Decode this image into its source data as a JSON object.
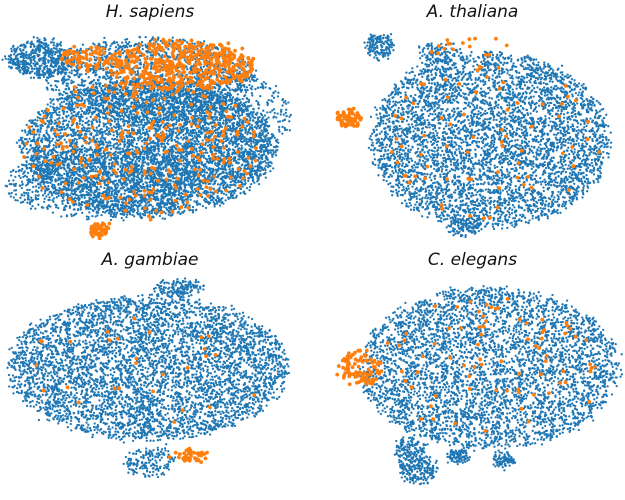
{
  "colors": {
    "background_points": "#1f77b4",
    "highlight_points": "#ff7f0e"
  },
  "chart_data": [
    {
      "type": "scatter",
      "title": "H. sapiens",
      "xlabel": "",
      "ylabel": "",
      "grid": false,
      "series": [
        {
          "color": "#1f77b4",
          "point_count": 9000
        },
        {
          "color": "#ff7f0e",
          "point_count": 900
        }
      ]
    },
    {
      "type": "scatter",
      "title": "A. thaliana",
      "xlabel": "",
      "ylabel": "",
      "grid": false,
      "series": [
        {
          "color": "#1f77b4",
          "point_count": 5200
        },
        {
          "color": "#ff7f0e",
          "point_count": 160
        }
      ]
    },
    {
      "type": "scatter",
      "title": "A. gambiae",
      "xlabel": "",
      "ylabel": "",
      "grid": false,
      "series": [
        {
          "color": "#1f77b4",
          "point_count": 5200
        },
        {
          "color": "#ff7f0e",
          "point_count": 70
        }
      ]
    },
    {
      "type": "scatter",
      "title": "C. elegans",
      "xlabel": "",
      "ylabel": "",
      "grid": false,
      "series": [
        {
          "color": "#1f77b4",
          "point_count": 4800
        },
        {
          "color": "#ff7f0e",
          "point_count": 170
        }
      ]
    }
  ]
}
